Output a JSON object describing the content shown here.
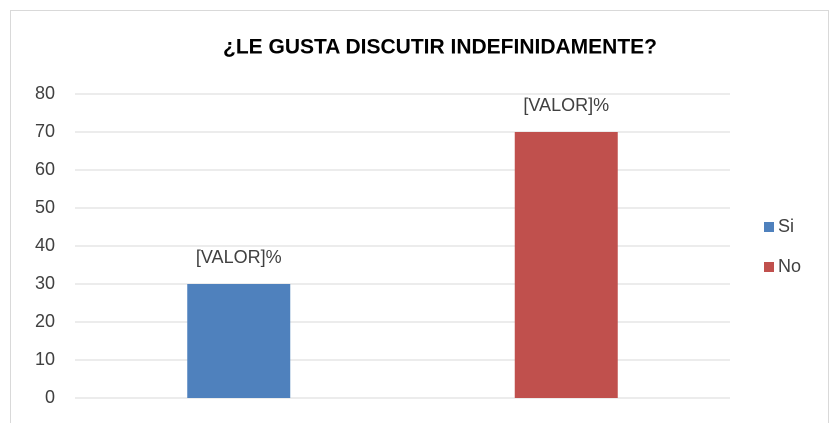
{
  "chart_data": {
    "type": "bar",
    "title": "¿LE GUSTA DISCUTIR INDEFINIDAMENTE?",
    "categories": [
      null
    ],
    "series": [
      {
        "name": "Si",
        "color": "#4f81bd",
        "values": [
          30
        ],
        "value_labels": [
          "[VALOR]%"
        ]
      },
      {
        "name": "No",
        "color": "#c0504d",
        "values": [
          70
        ],
        "value_labels": [
          "[VALOR]%"
        ]
      }
    ],
    "ylim": [
      0,
      80
    ],
    "yticks": [
      0,
      10,
      20,
      30,
      40,
      50,
      60,
      70,
      80
    ],
    "grid": true,
    "legend": "right"
  }
}
